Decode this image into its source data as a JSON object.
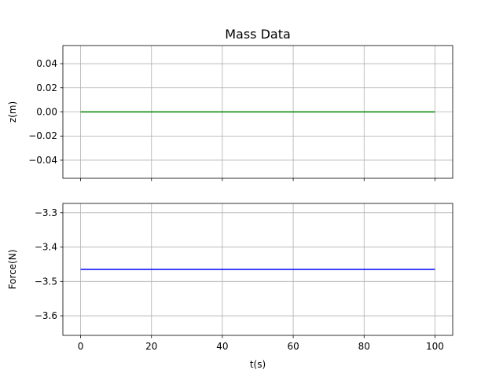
{
  "chart_data": {
    "type": "line",
    "title": "Mass Data",
    "xlabel": "t(s)",
    "xlim": [
      -5,
      105
    ],
    "shared_x": true,
    "grid": true,
    "subplots": [
      {
        "ylabel": "z(m)",
        "ylim": [
          -0.055,
          0.055
        ],
        "x_ticks": [
          0,
          20,
          40,
          60,
          80,
          100
        ],
        "y_ticks": [
          0.04,
          0.02,
          0.0,
          -0.02,
          -0.04
        ],
        "y_tick_labels": [
          "0.04",
          "0.02",
          "0.00",
          "−0.02",
          "−0.04"
        ],
        "show_x_tick_labels": false,
        "series": [
          {
            "color": "#008000",
            "x": [
              0,
              100
            ],
            "y": [
              0.0,
              0.0
            ]
          }
        ]
      },
      {
        "ylabel": "Force(N)",
        "ylim": [
          -3.657,
          -3.273
        ],
        "x_ticks": [
          0,
          20,
          40,
          60,
          80,
          100
        ],
        "x_tick_labels": [
          "0",
          "20",
          "40",
          "60",
          "80",
          "100"
        ],
        "y_ticks": [
          -3.3,
          -3.4,
          -3.5,
          -3.6
        ],
        "y_tick_labels": [
          "−3.3",
          "−3.4",
          "−3.5",
          "−3.6"
        ],
        "show_x_tick_labels": true,
        "series": [
          {
            "color": "#0000ff",
            "x": [
              0,
              100
            ],
            "y": [
              -3.465,
              -3.465
            ]
          }
        ]
      }
    ]
  }
}
